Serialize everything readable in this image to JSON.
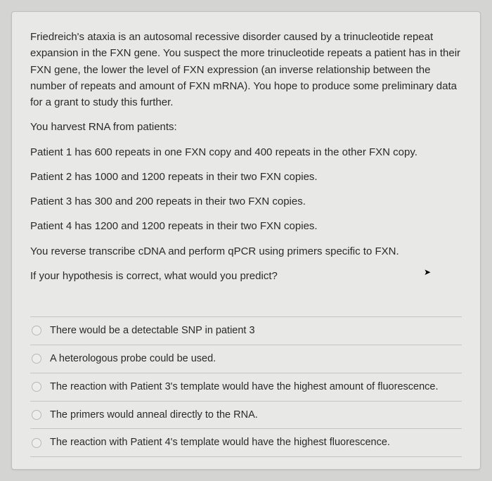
{
  "passage": {
    "intro": "Friedreich's ataxia is an autosomal recessive disorder caused by a trinucleotide repeat expansion in the FXN gene. You suspect the more trinucleotide repeats a patient has in their FXN gene, the lower the level of FXN expression (an inverse relationship between the number of repeats and amount of FXN mRNA). You hope to produce some preliminary data for a grant to study this further.",
    "harvest": "You harvest RNA from patients:",
    "patient1": "Patient 1 has 600 repeats in one FXN copy and 400 repeats in the other FXN copy.",
    "patient2": "Patient 2 has 1000 and 1200 repeats in their two FXN copies.",
    "patient3": "Patient 3 has 300 and 200 repeats in their two FXN copies.",
    "patient4": "Patient 4 has 1200 and 1200 repeats in their two FXN copies.",
    "method": "You reverse transcribe cDNA and perform qPCR using primers specific to FXN.",
    "question": "If your hypothesis is correct, what would you predict?"
  },
  "options": [
    "There would be a detectable SNP in patient 3",
    "A heterologous probe could be used.",
    "The reaction with Patient 3's template would have the highest amount of fluorescence.",
    "The primers would anneal directly to the RNA.",
    "The reaction with Patient 4's template would have the highest fluorescence."
  ],
  "colors": {
    "page_bg": "#d4d4d2",
    "card_bg": "#e8e8e6",
    "border": "#bfbfbd",
    "text": "#2a2a2a",
    "divider": "#c4c4c2",
    "radio_border": "#b8b8b6"
  }
}
